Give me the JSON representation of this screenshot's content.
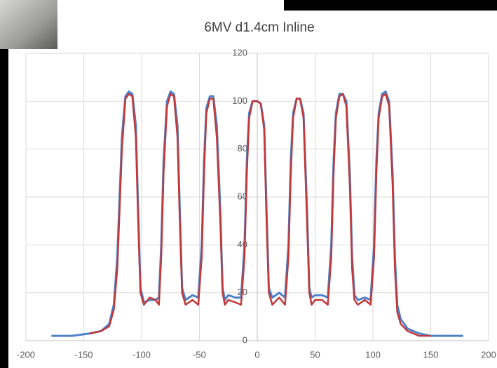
{
  "chart_data": {
    "type": "line",
    "title": "6MV d1.4cm Inline",
    "x": [
      -178,
      -160,
      -145,
      -135,
      -128,
      -124,
      -121,
      -119,
      -117,
      -114,
      -111,
      -108,
      -105,
      -103,
      -101,
      -98,
      -93,
      -88,
      -85,
      -83,
      -81,
      -78,
      -75,
      -72,
      -69,
      -67,
      -65,
      -62,
      -56,
      -51,
      -48,
      -46,
      -44,
      -41,
      -38,
      -35,
      -32,
      -30,
      -28,
      -25,
      -19,
      -14,
      -11,
      -9,
      -7,
      -4,
      0,
      3,
      6,
      8,
      10,
      13,
      19,
      24,
      27,
      29,
      31,
      34,
      37,
      40,
      43,
      45,
      47,
      50,
      56,
      61,
      64,
      66,
      68,
      71,
      74,
      77,
      80,
      82,
      84,
      87,
      93,
      98,
      101,
      103,
      105,
      108,
      111,
      114,
      117,
      119,
      121,
      124,
      130,
      140,
      150,
      160,
      178
    ],
    "series": [
      {
        "color": "#4f81c9",
        "values": [
          2,
          2,
          3,
          4,
          7,
          15,
          35,
          60,
          85,
          102,
          104,
          103,
          90,
          55,
          22,
          16,
          17,
          17,
          18,
          40,
          75,
          100,
          104,
          103,
          90,
          55,
          22,
          17,
          19,
          18,
          40,
          75,
          97,
          102,
          102,
          90,
          55,
          22,
          17,
          19,
          18,
          18,
          40,
          75,
          95,
          100,
          100,
          99,
          90,
          55,
          22,
          18,
          20,
          18,
          40,
          75,
          95,
          101,
          101,
          95,
          55,
          22,
          18,
          19,
          19,
          18,
          40,
          75,
          95,
          103,
          103,
          100,
          70,
          35,
          19,
          17,
          18,
          17,
          40,
          75,
          95,
          103,
          104,
          100,
          70,
          35,
          15,
          9,
          5,
          3,
          2,
          2,
          2
        ]
      },
      {
        "color": "#c0393b",
        "values": [
          null,
          null,
          3,
          4,
          6,
          13,
          30,
          55,
          80,
          101,
          103,
          102,
          85,
          50,
          20,
          15,
          18,
          17,
          15,
          35,
          70,
          98,
          103,
          102,
          85,
          50,
          20,
          15,
          17,
          15,
          35,
          70,
          95,
          101,
          101,
          85,
          50,
          20,
          15,
          17,
          16,
          15,
          35,
          70,
          93,
          100,
          100,
          99,
          88,
          50,
          20,
          15,
          18,
          15,
          35,
          70,
          93,
          101,
          101,
          93,
          50,
          20,
          15,
          17,
          17,
          15,
          35,
          70,
          93,
          102,
          103,
          98,
          65,
          30,
          17,
          15,
          17,
          15,
          35,
          70,
          93,
          102,
          103,
          98,
          65,
          30,
          12,
          7,
          4,
          2,
          2,
          null,
          null
        ]
      }
    ],
    "xlim": [
      -200,
      200
    ],
    "xticks": [
      -200,
      -150,
      -100,
      -50,
      0,
      50,
      100,
      150,
      200
    ],
    "ylim": [
      0,
      120
    ],
    "yticks": [
      0,
      20,
      40,
      60,
      80,
      100,
      120
    ],
    "grid": true
  }
}
